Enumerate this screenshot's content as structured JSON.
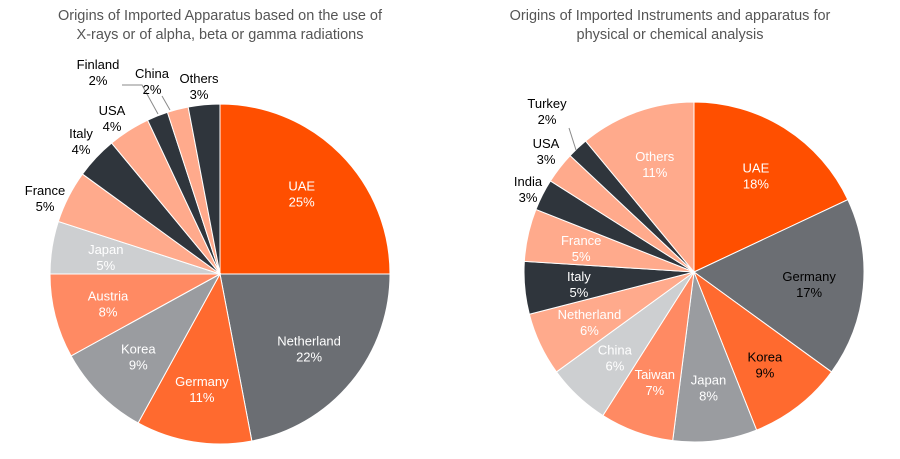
{
  "chart_data": [
    {
      "type": "pie",
      "title_lines": [
        "Origins of Imported Apparatus based on the use of",
        "X-rays or of alpha, beta or gamma radiations"
      ],
      "start": "12 o'clock, clockwise",
      "slices": [
        {
          "label": "UAE",
          "value": 25,
          "display": "25%",
          "color": "#FF4F00",
          "text_color": "#ffffff",
          "label_position": "inside"
        },
        {
          "label": "Netherland",
          "value": 22,
          "display": "22%",
          "color": "#6B6E73",
          "text_color": "#ffffff",
          "label_position": "inside"
        },
        {
          "label": "Germany",
          "value": 11,
          "display": "11%",
          "color": "#FF6A2F",
          "text_color": "#ffffff",
          "label_position": "inside"
        },
        {
          "label": "Korea",
          "value": 9,
          "display": "9%",
          "color": "#9A9CA0",
          "text_color": "#ffffff",
          "label_position": "inside"
        },
        {
          "label": "Austria",
          "value": 8,
          "display": "8%",
          "color": "#FF8A63",
          "text_color": "#ffffff",
          "label_position": "inside"
        },
        {
          "label": "Japan",
          "value": 5,
          "display": "5%",
          "color": "#CDCFD1",
          "text_color": "#ffffff",
          "label_position": "inside"
        },
        {
          "label": "France",
          "value": 5,
          "display": "5%",
          "color": "#FFAA8C",
          "text_color": "#000000",
          "label_position": "outside"
        },
        {
          "label": "Italy",
          "value": 4,
          "display": "4%",
          "color": "#2F353C",
          "text_color": "#000000",
          "label_position": "outside"
        },
        {
          "label": "USA",
          "value": 4,
          "display": "4%",
          "color": "#FFAA8C",
          "text_color": "#000000",
          "label_position": "outside"
        },
        {
          "label": "Finland",
          "value": 2,
          "display": "2%",
          "color": "#2F353C",
          "text_color": "#000000",
          "label_position": "outside"
        },
        {
          "label": "China",
          "value": 2,
          "display": "2%",
          "color": "#FFAA8C",
          "text_color": "#000000",
          "label_position": "outside"
        },
        {
          "label": "Others",
          "value": 3,
          "display": "3%",
          "color": "#2F353C",
          "text_color": "#000000",
          "label_position": "outside"
        }
      ]
    },
    {
      "type": "pie",
      "title_lines": [
        "Origins of Imported Instruments and apparatus for",
        "physical or chemical analysis"
      ],
      "start": "12 o'clock, clockwise",
      "slices": [
        {
          "label": "UAE",
          "value": 18,
          "display": "18%",
          "color": "#FF4F00",
          "text_color": "#ffffff",
          "label_position": "inside"
        },
        {
          "label": "Germany",
          "value": 17,
          "display": "17%",
          "color": "#6B6E73",
          "text_color": "#000000",
          "label_position": "inside"
        },
        {
          "label": "Korea",
          "value": 9,
          "display": "9%",
          "color": "#FF6A2F",
          "text_color": "#000000",
          "label_position": "inside"
        },
        {
          "label": "Japan",
          "value": 8,
          "display": "8%",
          "color": "#9A9CA0",
          "text_color": "#ffffff",
          "label_position": "inside"
        },
        {
          "label": "Taiwan",
          "value": 7,
          "display": "7%",
          "color": "#FF8A63",
          "text_color": "#ffffff",
          "label_position": "inside"
        },
        {
          "label": "China",
          "value": 6,
          "display": "6%",
          "color": "#CDCFD1",
          "text_color": "#ffffff",
          "label_position": "inside"
        },
        {
          "label": "Netherland",
          "value": 6,
          "display": "6%",
          "color": "#FFAA8C",
          "text_color": "#ffffff",
          "label_position": "inside"
        },
        {
          "label": "Italy",
          "value": 5,
          "display": "5%",
          "color": "#2F353C",
          "text_color": "#ffffff",
          "label_position": "inside"
        },
        {
          "label": "France",
          "value": 5,
          "display": "5%",
          "color": "#FFAA8C",
          "text_color": "#ffffff",
          "label_position": "inside"
        },
        {
          "label": "India",
          "value": 3,
          "display": "3%",
          "color": "#2F353C",
          "text_color": "#000000",
          "label_position": "outside"
        },
        {
          "label": "USA",
          "value": 3,
          "display": "3%",
          "color": "#FFAA8C",
          "text_color": "#000000",
          "label_position": "outside"
        },
        {
          "label": "Turkey",
          "value": 2,
          "display": "2%",
          "color": "#2F353C",
          "text_color": "#000000",
          "label_position": "outside"
        },
        {
          "label": "Others",
          "value": 11,
          "display": "11%",
          "color": "#FFAA8C",
          "text_color": "#ffffff",
          "label_position": "inside"
        }
      ]
    }
  ]
}
